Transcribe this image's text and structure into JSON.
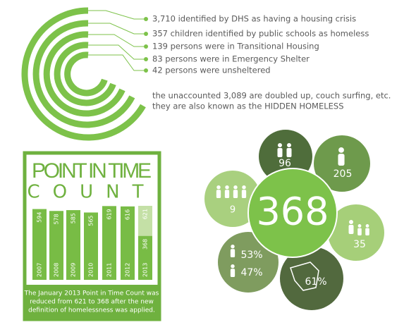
{
  "facts": {
    "items": [
      "3,710 identified by DHS as having a housing crisis",
      "357 children identified by public schools as homeless",
      "139 persons were in Transitional Housing",
      "83 persons were in Emergency Shelter",
      "42 persons were unsheltered"
    ],
    "note": [
      "the unaccounted 3,089 are doubled up, couch surfing, etc.",
      "they are also known as the HIDDEN HOMELESS"
    ]
  },
  "chart_data": {
    "type": "bar",
    "title": "POINT IN TIME",
    "subtitle": "COUNT",
    "categories": [
      "2007",
      "2008",
      "2009",
      "2010",
      "2011",
      "2012",
      "2013"
    ],
    "values": [
      594,
      578,
      585,
      565,
      619,
      616,
      368
    ],
    "previous_values": [
      null,
      null,
      null,
      null,
      null,
      null,
      621
    ],
    "color": "#78bc45",
    "previous_color": "#c4e0a6",
    "caption": [
      "The January 2013 Point in Time Count was",
      "reduced from 621 to 368 after the new",
      "definition of homelessness was applied."
    ]
  },
  "flower": {
    "center": "368",
    "petals": [
      "96",
      "205",
      "9",
      "35",
      "53%",
      "47%",
      "61%"
    ]
  }
}
